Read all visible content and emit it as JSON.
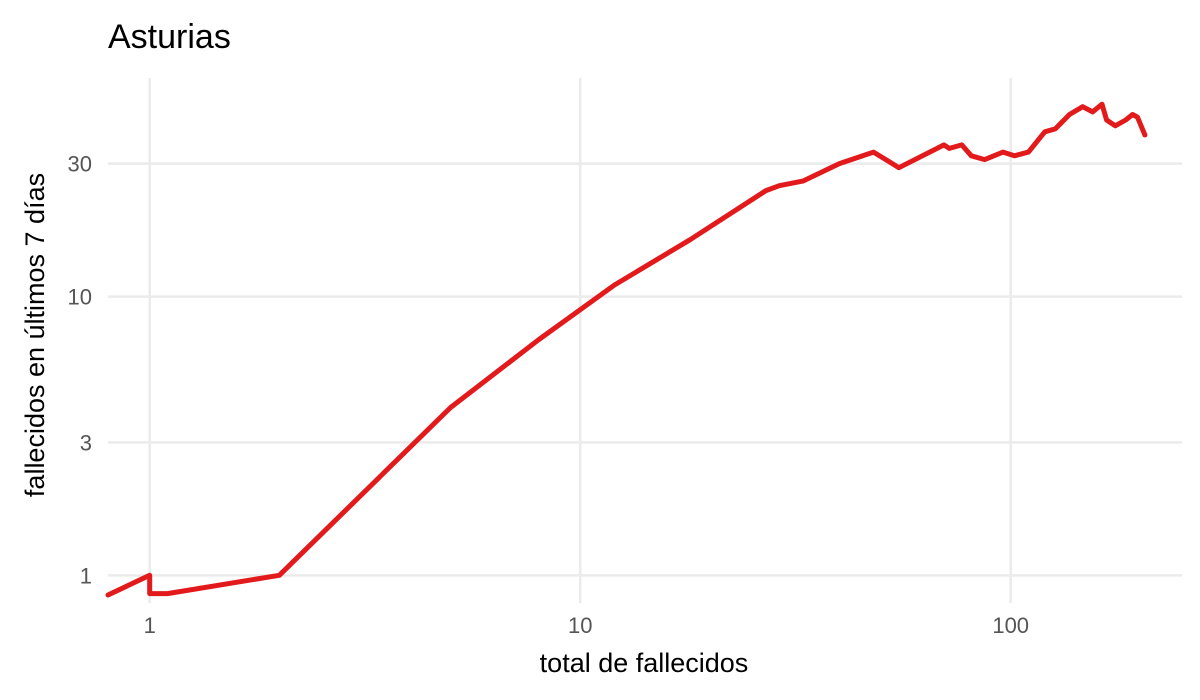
{
  "chart_data": {
    "type": "line",
    "title": "Asturias",
    "xlabel": "total de fallecidos",
    "ylabel": "fallecidos en últimos 7 días",
    "x_scale": "log",
    "y_scale": "log",
    "xlim": [
      0.8,
      250
    ],
    "ylim": [
      0.85,
      65
    ],
    "x_ticks": [
      1,
      10,
      100
    ],
    "x_tick_labels": [
      "1",
      "10",
      "100"
    ],
    "y_ticks": [
      1,
      3,
      10,
      30
    ],
    "y_tick_labels": [
      "1",
      "3",
      "10",
      "30"
    ],
    "grid": true,
    "legend": "none",
    "line_color": "#e31a1c",
    "series": [
      {
        "x": [
          0.8,
          1,
          1,
          1.1,
          2,
          5,
          8,
          12,
          18,
          27,
          29,
          33,
          40,
          48,
          55,
          70,
          72,
          77,
          81,
          87,
          96,
          102,
          110,
          120,
          127,
          137,
          147,
          155,
          163,
          167,
          175,
          185,
          192,
          197,
          205
        ],
        "y": [
          0.85,
          1,
          0.86,
          0.86,
          1,
          4,
          7,
          11,
          16,
          24,
          25,
          26,
          30,
          33,
          29,
          35,
          34,
          35,
          32,
          31,
          33,
          32,
          33,
          39,
          40,
          45,
          48,
          46,
          49,
          43,
          41,
          43,
          45,
          44,
          38
        ]
      }
    ]
  }
}
